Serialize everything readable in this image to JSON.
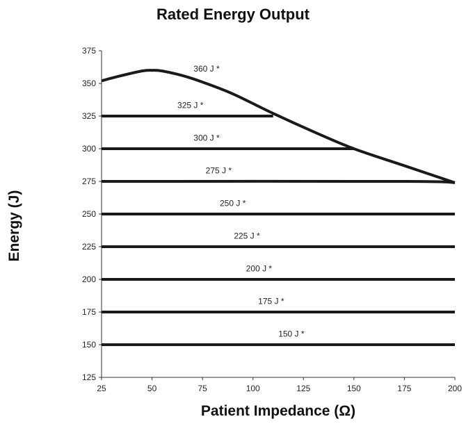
{
  "chart_data": {
    "type": "line",
    "title": "Rated Energy Output",
    "xlabel": "Patient Impedance (Ω)",
    "ylabel": "Energy (J)",
    "xlim": [
      25,
      200
    ],
    "ylim": [
      125,
      375
    ],
    "xticks": [
      25,
      50,
      75,
      100,
      125,
      150,
      175,
      200
    ],
    "yticks": [
      125,
      150,
      175,
      200,
      225,
      250,
      275,
      300,
      325,
      350,
      375
    ],
    "grid": false,
    "legend": "none",
    "line_color": "#1a1a1a",
    "series": [
      {
        "name": "360 J *",
        "label_x": 77,
        "label_y": 359,
        "x": [
          25,
          35,
          45,
          50,
          55,
          65,
          75,
          90,
          110,
          130,
          150,
          175,
          200
        ],
        "y": [
          352,
          356,
          359.5,
          360,
          359.5,
          356,
          351,
          342,
          327,
          313,
          300,
          287,
          274
        ]
      },
      {
        "name": "325 J *",
        "label_x": 69,
        "label_y": 331,
        "x": [
          25,
          110
        ],
        "y": [
          325,
          325
        ]
      },
      {
        "name": "300 J *",
        "label_x": 77,
        "label_y": 306,
        "x": [
          25,
          150
        ],
        "y": [
          300,
          300
        ]
      },
      {
        "name": "275 J *",
        "label_x": 83,
        "label_y": 281,
        "x": [
          25,
          175,
          200
        ],
        "y": [
          275,
          275,
          274
        ]
      },
      {
        "name": "250 J *",
        "label_x": 90,
        "label_y": 256,
        "x": [
          25,
          200
        ],
        "y": [
          250,
          250
        ]
      },
      {
        "name": "225 J *",
        "label_x": 97,
        "label_y": 231,
        "x": [
          25,
          200
        ],
        "y": [
          225,
          225
        ]
      },
      {
        "name": "200 J *",
        "label_x": 103,
        "label_y": 206,
        "x": [
          25,
          200
        ],
        "y": [
          200,
          200
        ]
      },
      {
        "name": "175 J *",
        "label_x": 109,
        "label_y": 181,
        "x": [
          25,
          200
        ],
        "y": [
          175,
          175
        ]
      },
      {
        "name": "150 J *",
        "label_x": 119,
        "label_y": 156,
        "x": [
          25,
          200
        ],
        "y": [
          150,
          150
        ]
      }
    ]
  }
}
